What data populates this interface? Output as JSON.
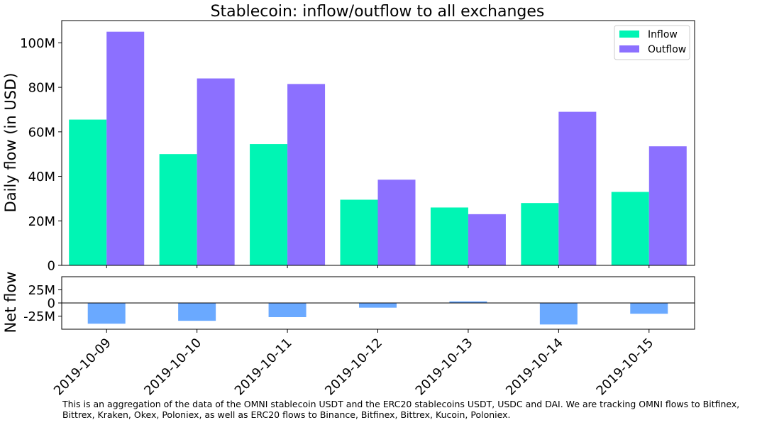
{
  "chart_data": {
    "type": "bar",
    "title": "Stablecoin: inflow/outflow to all exchanges",
    "categories": [
      "2019-10-09",
      "2019-10-10",
      "2019-10-11",
      "2019-10-12",
      "2019-10-13",
      "2019-10-14",
      "2019-10-15"
    ],
    "series": [
      {
        "name": "Inflow",
        "color": "#00f5b4",
        "values": [
          65.5,
          50,
          54.5,
          29.5,
          26,
          28,
          33
        ]
      },
      {
        "name": "Outflow",
        "color": "#8c70ff",
        "values": [
          105,
          84,
          81.5,
          38.5,
          23,
          69,
          53.5
        ]
      }
    ],
    "ylabel": "Daily flow (in USD)",
    "ylim": [
      0,
      110
    ],
    "yticks": [
      0,
      20,
      40,
      60,
      80,
      100
    ],
    "ytick_labels": [
      "0",
      "20M",
      "40M",
      "60M",
      "80M",
      "100M"
    ],
    "legend_position": "top-right",
    "unit": "millions USD",
    "netflow": {
      "ylabel": "Net flow",
      "color": "#6aa9ff",
      "values": [
        -39.5,
        -34,
        -27,
        -9,
        3,
        -41,
        -20.5
      ],
      "ylim": [
        -50,
        50
      ],
      "yticks": [
        -25,
        0,
        25
      ],
      "ytick_labels": [
        "-25M",
        "0",
        "25M"
      ]
    }
  },
  "footnote": "This is an aggregation of the data of the OMNI stablecoin USDT and the ERC20 stablecoins USDT, USDC and DAI. We are tracking OMNI flows to Bitfinex, Bittrex, Kraken, Okex, Poloniex, as well as ERC20 flows to Binance, Bitfinex, Bittrex, Kucoin, Poloniex."
}
